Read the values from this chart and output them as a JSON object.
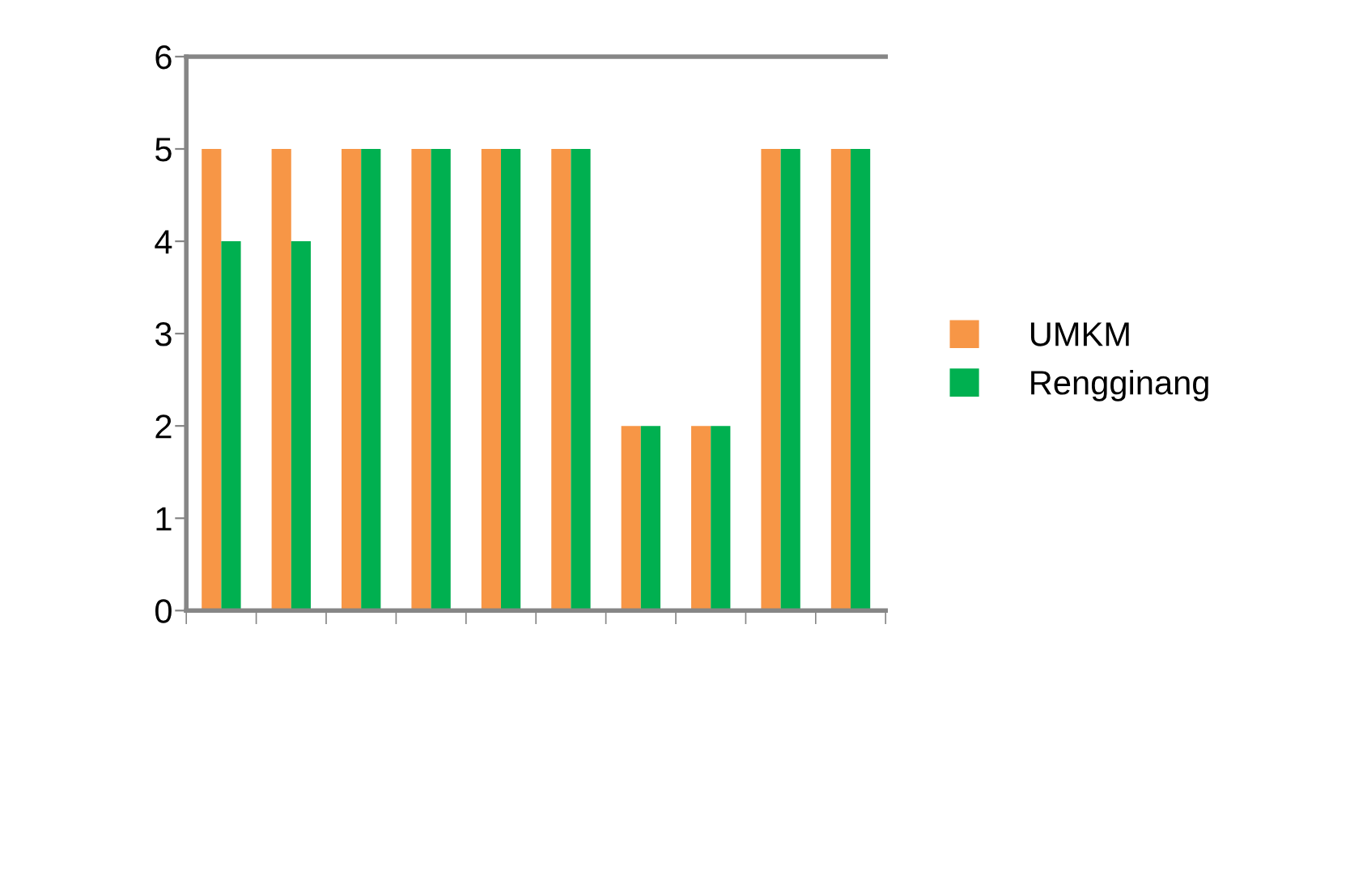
{
  "chart_data": {
    "type": "bar",
    "categories": [
      null,
      null,
      null,
      null,
      null,
      null,
      null,
      null,
      null,
      null
    ],
    "series": [
      {
        "name": "UMKM",
        "color": "#f79646",
        "values": [
          5,
          5,
          5,
          5,
          5,
          5,
          2,
          2,
          5,
          5
        ]
      },
      {
        "name": "Rengginang",
        "color": "#00b050",
        "values": [
          4,
          4,
          5,
          5,
          5,
          5,
          2,
          2,
          5,
          5
        ]
      }
    ],
    "ylim": [
      0,
      6
    ],
    "yticks": [
      0,
      1,
      2,
      3,
      4,
      5,
      6
    ],
    "grid": false,
    "legend": "right"
  }
}
